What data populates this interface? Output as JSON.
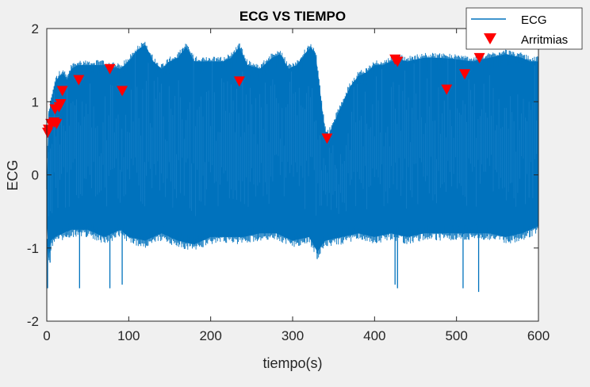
{
  "chart_data": {
    "type": "line",
    "title": "ECG VS TIEMPO",
    "xlabel": "tiempo(s)",
    "ylabel": "ECG",
    "xlim": [
      0,
      600
    ],
    "ylim": [
      -2,
      2
    ],
    "xticks": [
      "0",
      "100",
      "200",
      "300",
      "400",
      "500",
      "600"
    ],
    "yticks": [
      "-2",
      "-1",
      "0",
      "1",
      "2"
    ],
    "grid": false,
    "legend_position": "top-right",
    "series": [
      {
        "name": "ECG",
        "style": "filled-band",
        "color": "#0072BD",
        "upper_envelope": [
          [
            0,
            -0.2
          ],
          [
            2,
            0.8
          ],
          [
            5,
            1.0
          ],
          [
            10,
            1.25
          ],
          [
            15,
            1.35
          ],
          [
            20,
            1.38
          ],
          [
            25,
            1.3
          ],
          [
            30,
            1.45
          ],
          [
            38,
            1.5
          ],
          [
            50,
            1.5
          ],
          [
            70,
            1.5
          ],
          [
            90,
            1.45
          ],
          [
            100,
            1.55
          ],
          [
            110,
            1.7
          ],
          [
            120,
            1.78
          ],
          [
            130,
            1.55
          ],
          [
            140,
            1.45
          ],
          [
            150,
            1.55
          ],
          [
            160,
            1.6
          ],
          [
            170,
            1.75
          ],
          [
            180,
            1.55
          ],
          [
            200,
            1.55
          ],
          [
            215,
            1.55
          ],
          [
            225,
            1.6
          ],
          [
            235,
            1.75
          ],
          [
            245,
            1.5
          ],
          [
            260,
            1.45
          ],
          [
            275,
            1.6
          ],
          [
            285,
            1.65
          ],
          [
            295,
            1.45
          ],
          [
            305,
            1.5
          ],
          [
            315,
            1.65
          ],
          [
            322,
            1.75
          ],
          [
            328,
            1.65
          ],
          [
            332,
            1.3
          ],
          [
            336,
            0.9
          ],
          [
            340,
            0.6
          ],
          [
            344,
            0.55
          ],
          [
            350,
            0.7
          ],
          [
            360,
            0.95
          ],
          [
            370,
            1.2
          ],
          [
            380,
            1.35
          ],
          [
            390,
            1.4
          ],
          [
            400,
            1.5
          ],
          [
            410,
            1.5
          ],
          [
            420,
            1.55
          ],
          [
            430,
            1.58
          ],
          [
            440,
            1.55
          ],
          [
            460,
            1.6
          ],
          [
            480,
            1.6
          ],
          [
            500,
            1.58
          ],
          [
            520,
            1.55
          ],
          [
            540,
            1.6
          ],
          [
            560,
            1.65
          ],
          [
            580,
            1.6
          ],
          [
            590,
            1.55
          ],
          [
            600,
            1.55
          ]
        ],
        "lower_envelope": [
          [
            0,
            -0.6
          ],
          [
            2,
            -1.15
          ],
          [
            5,
            -0.9
          ],
          [
            10,
            -0.85
          ],
          [
            20,
            -0.8
          ],
          [
            30,
            -0.75
          ],
          [
            50,
            -0.75
          ],
          [
            70,
            -0.85
          ],
          [
            90,
            -0.75
          ],
          [
            100,
            -0.85
          ],
          [
            120,
            -0.9
          ],
          [
            140,
            -0.8
          ],
          [
            160,
            -0.9
          ],
          [
            180,
            -0.95
          ],
          [
            200,
            -0.85
          ],
          [
            220,
            -0.85
          ],
          [
            240,
            -0.85
          ],
          [
            260,
            -0.8
          ],
          [
            280,
            -0.8
          ],
          [
            300,
            -0.9
          ],
          [
            320,
            -0.85
          ],
          [
            330,
            -1.05
          ],
          [
            340,
            -0.9
          ],
          [
            360,
            -0.85
          ],
          [
            380,
            -0.8
          ],
          [
            400,
            -0.85
          ],
          [
            420,
            -0.8
          ],
          [
            440,
            -0.85
          ],
          [
            460,
            -0.8
          ],
          [
            480,
            -0.8
          ],
          [
            500,
            -0.8
          ],
          [
            520,
            -0.8
          ],
          [
            540,
            -0.8
          ],
          [
            560,
            -0.85
          ],
          [
            580,
            -0.8
          ],
          [
            600,
            -0.7
          ]
        ],
        "spikes_down": [
          [
            1,
            -1.55
          ],
          [
            4,
            -1.2
          ],
          [
            40,
            -1.55
          ],
          [
            77,
            -1.55
          ],
          [
            92,
            -1.5
          ],
          [
            330,
            -1.15
          ],
          [
            425,
            -1.5
          ],
          [
            428,
            -1.55
          ],
          [
            508,
            -1.55
          ],
          [
            527,
            -1.6
          ]
        ],
        "spikes_up": [
          [
            0,
            0.6
          ],
          [
            3,
            0.7
          ],
          [
            6,
            0.75
          ]
        ]
      },
      {
        "name": "Arritmias",
        "style": "markers",
        "marker": "triangle-down",
        "color": "#FF0000",
        "points": [
          [
            1,
            0.58
          ],
          [
            2,
            0.62
          ],
          [
            5,
            0.7
          ],
          [
            9,
            0.72
          ],
          [
            10,
            0.9
          ],
          [
            12,
            0.7
          ],
          [
            15,
            0.93
          ],
          [
            17,
            0.97
          ],
          [
            19,
            1.15
          ],
          [
            39,
            1.3
          ],
          [
            77,
            1.45
          ],
          [
            92,
            1.15
          ],
          [
            235,
            1.28
          ],
          [
            342,
            0.5
          ],
          [
            425,
            1.58
          ],
          [
            428,
            1.55
          ],
          [
            488,
            1.17
          ],
          [
            510,
            1.38
          ],
          [
            528,
            1.6
          ]
        ]
      }
    ]
  }
}
